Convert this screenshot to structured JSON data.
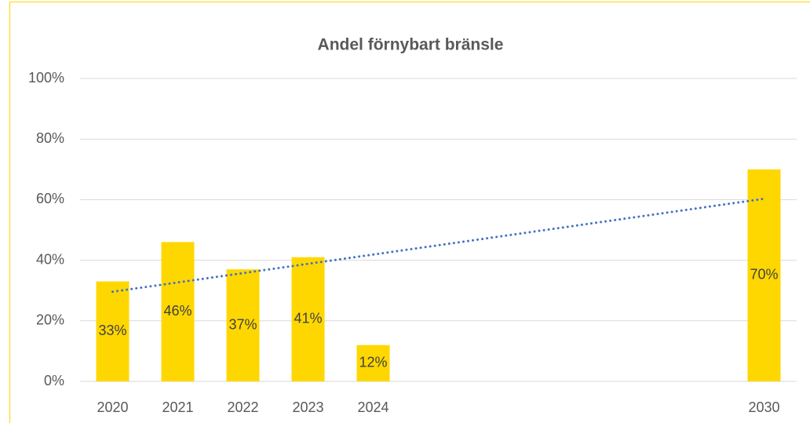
{
  "chart_data": {
    "type": "bar",
    "title": "Andel förnybart bränsle",
    "categories": [
      "2020",
      "2021",
      "2022",
      "2023",
      "2024",
      null,
      null,
      null,
      null,
      null,
      "2030"
    ],
    "values": [
      33,
      46,
      37,
      41,
      12,
      null,
      null,
      null,
      null,
      null,
      70
    ],
    "value_labels": [
      "33%",
      "46%",
      "37%",
      "41%",
      "12%",
      null,
      null,
      null,
      null,
      null,
      "70%"
    ],
    "color": "#ffd700",
    "ylim": [
      0,
      100
    ],
    "yticks": [
      {
        "value": 0,
        "label": "0%"
      },
      {
        "value": 20,
        "label": "20%"
      },
      {
        "value": 40,
        "label": "40%"
      },
      {
        "value": 60,
        "label": "60%"
      },
      {
        "value": 80,
        "label": "80%"
      },
      {
        "value": 100,
        "label": "100%"
      }
    ],
    "grid": true,
    "trendline": {
      "type": "linear",
      "color": "#4472c4"
    }
  }
}
